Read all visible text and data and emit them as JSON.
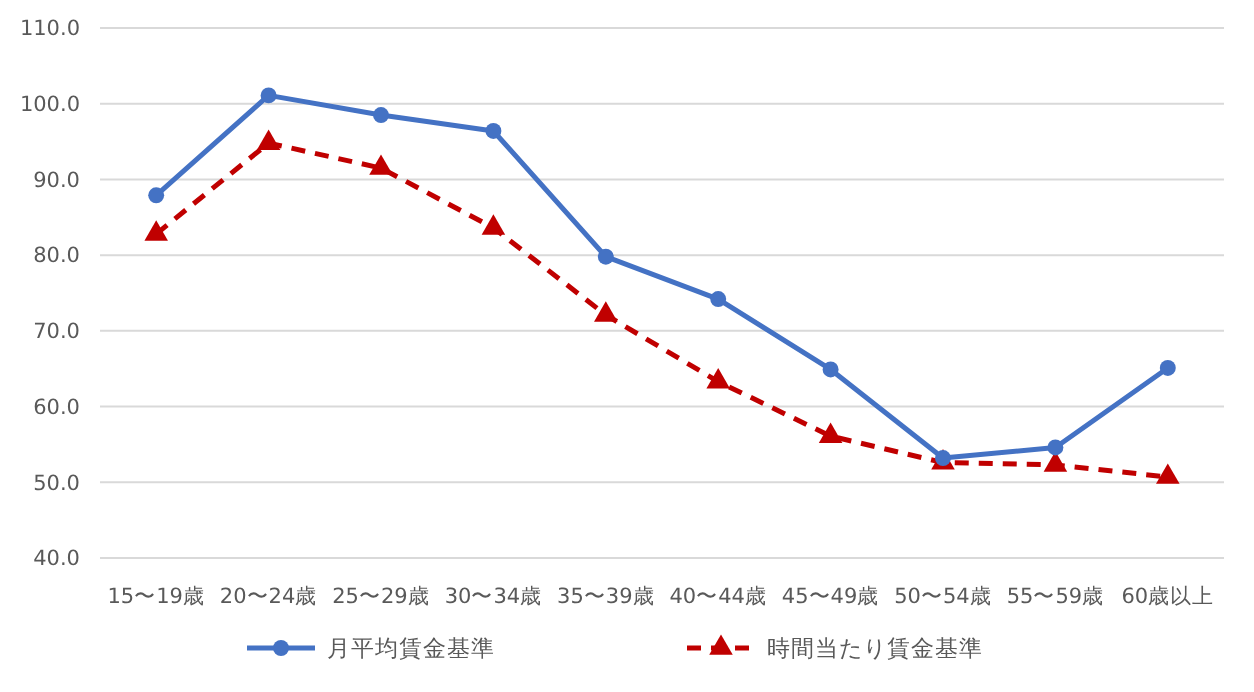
{
  "chart_data": {
    "type": "line",
    "categories": [
      "15〜19歳",
      "20〜24歳",
      "25〜29歳",
      "30〜34歳",
      "35〜39歳",
      "40〜44歳",
      "45〜49歳",
      "50〜54歳",
      "55〜59歳",
      "60歳以上"
    ],
    "series": [
      {
        "name": "月平均賃金基準",
        "color": "#4472c4",
        "marker": "circle",
        "line_style": "solid",
        "values": [
          87.9,
          101.1,
          98.5,
          96.4,
          79.8,
          74.2,
          64.9,
          53.2,
          54.6,
          65.1
        ]
      },
      {
        "name": "時間当たり賃金基準",
        "color": "#c00000",
        "marker": "triangle",
        "line_style": "dashed",
        "values": [
          82.8,
          94.8,
          91.5,
          83.6,
          72.1,
          63.3,
          56.1,
          52.6,
          52.3,
          50.7
        ]
      }
    ],
    "ylim": [
      40,
      110
    ],
    "yticks": [
      {
        "value": 40,
        "label": "40.0"
      },
      {
        "value": 50,
        "label": "50.0"
      },
      {
        "value": 60,
        "label": "60.0"
      },
      {
        "value": 70,
        "label": "70.0"
      },
      {
        "value": 80,
        "label": "80.0"
      },
      {
        "value": 90,
        "label": "90.0"
      },
      {
        "value": 100,
        "label": "100.0"
      },
      {
        "value": 110,
        "label": "110.0"
      }
    ],
    "grid": "y",
    "legend": "bottom"
  }
}
